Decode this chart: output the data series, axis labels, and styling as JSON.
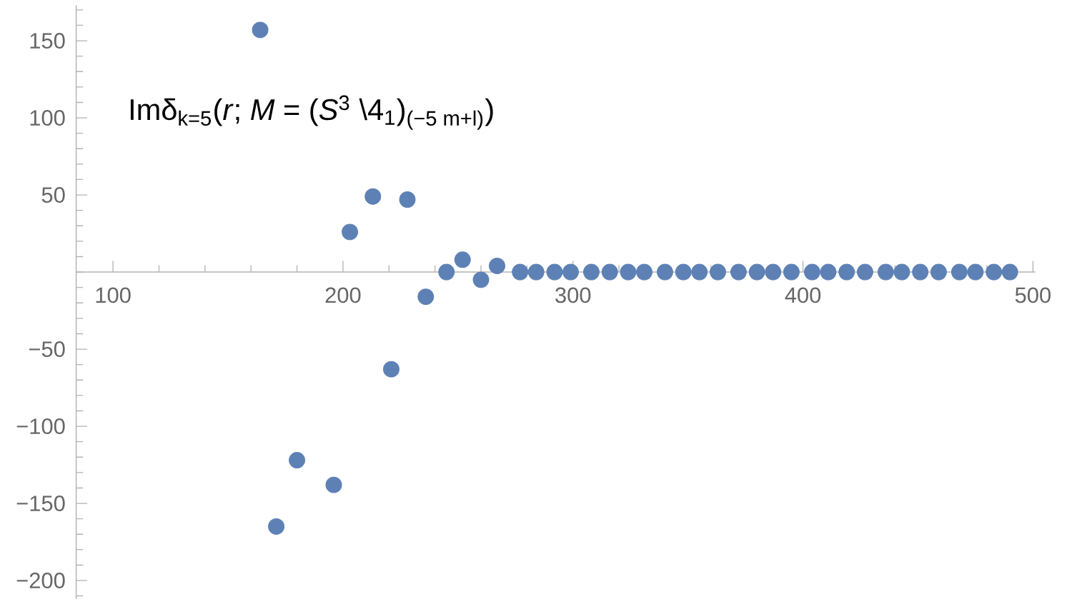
{
  "chart_data": {
    "type": "scatter",
    "title": "Imδ$_{k=5}$(*r*; *M* = (*S*$^{3}$ \\4$_{1}$)$_{(−5 m+l)}$)",
    "x": [
      164,
      171,
      180,
      196,
      203,
      213,
      221,
      228,
      236,
      245,
      252,
      260,
      267,
      277,
      284,
      292,
      299,
      308,
      316,
      324,
      331,
      340,
      348,
      355,
      363,
      372,
      380,
      387,
      395,
      404,
      411,
      419,
      427,
      436,
      443,
      451,
      459,
      468,
      475,
      483,
      490
    ],
    "values": [
      157,
      -165,
      -122,
      -138,
      26,
      49,
      -63,
      47,
      -16,
      0,
      8,
      -5,
      4,
      0,
      0,
      0,
      0,
      0,
      0,
      0,
      0,
      0,
      0,
      0,
      0,
      0,
      0,
      0,
      0,
      0,
      0,
      0,
      0,
      0,
      0,
      0,
      0,
      0,
      0,
      0,
      0
    ],
    "color": "#5e81b5",
    "marker": "circle",
    "xlim": [
      84,
      501
    ],
    "ylim": [
      -212,
      173
    ],
    "xticks": [
      100,
      200,
      300,
      400,
      500
    ],
    "yticks": [
      {
        "value": -200,
        "label": "−200"
      },
      {
        "value": -150,
        "label": "−150"
      },
      {
        "value": -100,
        "label": "−100"
      },
      {
        "value": -50,
        "label": "−50"
      },
      50,
      100,
      150
    ]
  }
}
